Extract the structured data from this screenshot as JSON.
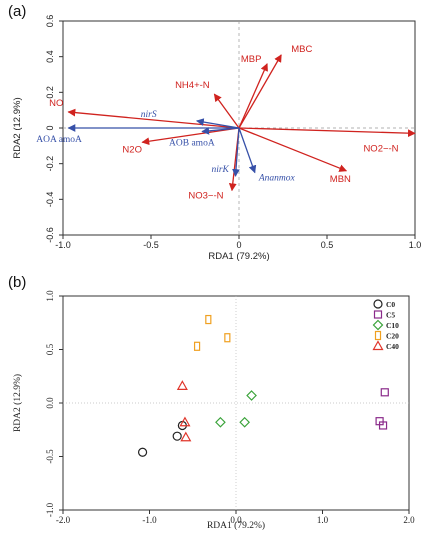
{
  "panels": [
    "(a)",
    "(b)"
  ],
  "colors": {
    "env_arrow": "#d0231f",
    "gene_arrow": "#3650a8",
    "C0": "#222222",
    "C5": "#8a2a8a",
    "C10": "#3aa33a",
    "C20": "#f0a020",
    "C40": "#e0352a"
  },
  "chart_data": [
    {
      "type": "biplot",
      "panel": "(a)",
      "xlabel": "RDA1 (79.2%)",
      "ylabel": "RDA2 (12.9%)",
      "xlim": [
        -1.0,
        1.0
      ],
      "ylim": [
        -0.6,
        0.6
      ],
      "xticks": [
        "-1.0",
        "-0.5",
        "0",
        "0.5",
        "1.0"
      ],
      "yticks": [
        "-0.6",
        "-0.4",
        "-0.2",
        "0",
        "0.2",
        "0.4",
        "0.6"
      ],
      "grid": false,
      "reference_lines": "dashed at x=0 and y=0",
      "vectors": [
        {
          "label": "MBC",
          "group": "env",
          "x": 0.24,
          "y": 0.41
        },
        {
          "label": "MBP",
          "group": "env",
          "x": 0.16,
          "y": 0.36
        },
        {
          "label": "NH4+-N",
          "group": "env",
          "x": -0.14,
          "y": 0.19
        },
        {
          "label": "NO",
          "group": "env",
          "x": -0.97,
          "y": 0.09
        },
        {
          "label": "N2O",
          "group": "env",
          "x": -0.55,
          "y": -0.08
        },
        {
          "label": "NO3−-N",
          "group": "env",
          "x": -0.04,
          "y": -0.35
        },
        {
          "label": "MBN",
          "group": "env",
          "x": 0.61,
          "y": -0.24
        },
        {
          "label": "NO2−-N",
          "group": "env",
          "x": 1.0,
          "y": -0.03
        },
        {
          "label": "nirS",
          "group": "gene",
          "x": -0.24,
          "y": 0.04
        },
        {
          "label": "AOA amoA",
          "group": "gene",
          "x": -0.97,
          "y": 0.0
        },
        {
          "label": "AOB amoA",
          "group": "gene",
          "x": -0.21,
          "y": -0.02
        },
        {
          "label": "nirK",
          "group": "gene",
          "x": -0.02,
          "y": -0.27
        },
        {
          "label": "Ananmox",
          "group": "gene",
          "x": 0.09,
          "y": -0.25
        }
      ]
    },
    {
      "type": "scatter",
      "panel": "(b)",
      "xlabel": "RDA1 (79.2%)",
      "ylabel": "RDA2 (12.9%)",
      "xlim": [
        -2.0,
        2.0
      ],
      "ylim": [
        -1.0,
        1.0
      ],
      "xticks": [
        "-2.0",
        "-1.0",
        "0.0",
        "1.0",
        "2.0"
      ],
      "yticks": [
        "-1.0",
        "-0.5",
        "0.0",
        "0.5",
        "1.0"
      ],
      "grid": false,
      "reference_lines": "dotted at x=0 and y=0",
      "legend": "top-right",
      "series": [
        {
          "name": "C0",
          "marker": "circle",
          "points": [
            [
              -1.08,
              -0.46
            ],
            [
              -0.68,
              -0.31
            ],
            [
              -0.62,
              -0.21
            ]
          ]
        },
        {
          "name": "C5",
          "marker": "square",
          "points": [
            [
              1.72,
              0.1
            ],
            [
              1.66,
              -0.17
            ],
            [
              1.7,
              -0.21
            ]
          ]
        },
        {
          "name": "C10",
          "marker": "diamond",
          "points": [
            [
              0.18,
              0.07
            ],
            [
              -0.18,
              -0.18
            ],
            [
              0.1,
              -0.18
            ]
          ]
        },
        {
          "name": "C20",
          "marker": "rect",
          "points": [
            [
              -0.32,
              0.78
            ],
            [
              -0.1,
              0.61
            ],
            [
              -0.45,
              0.53
            ]
          ]
        },
        {
          "name": "C40",
          "marker": "triangle",
          "points": [
            [
              -0.62,
              0.16
            ],
            [
              -0.59,
              -0.18
            ],
            [
              -0.58,
              -0.32
            ]
          ]
        }
      ]
    }
  ]
}
